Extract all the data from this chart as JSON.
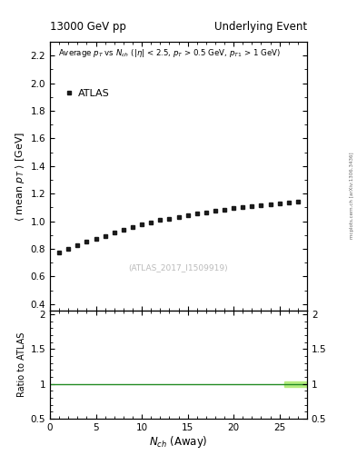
{
  "title_left": "13000 GeV pp",
  "title_right": "Underlying Event",
  "annotation_line1": "Average $p_{T}$ vs $N_{ch}$ (|$\\eta$| < 2.5, $p_{T}$ > 0.5 GeV, $p_{T1}$ > 1 GeV)",
  "watermark": "(ATLAS_2017_I1509919)",
  "right_label": "mcplots.cern.ch [arXiv:1306.3436]",
  "legend_label": "ATLAS",
  "xlabel": "$N_{ch}$ (Away)",
  "ylabel_main": "$\\langle$ mean $p_{T}$ $\\rangle$ [GeV]",
  "ylabel_ratio": "Ratio to ATLAS",
  "xlim": [
    0,
    28
  ],
  "ylim_main": [
    0.35,
    2.3
  ],
  "ylim_ratio": [
    0.5,
    2.05
  ],
  "yticks_main": [
    0.4,
    0.6,
    0.8,
    1.0,
    1.2,
    1.4,
    1.6,
    1.8,
    2.0,
    2.2
  ],
  "yticks_ratio": [
    0.5,
    1.0,
    1.5,
    2.0
  ],
  "data_x": [
    1,
    2,
    3,
    4,
    5,
    6,
    7,
    8,
    9,
    10,
    11,
    12,
    13,
    14,
    15,
    16,
    17,
    18,
    19,
    20,
    21,
    22,
    23,
    24,
    25,
    26,
    27
  ],
  "data_y": [
    0.775,
    0.8,
    0.825,
    0.855,
    0.875,
    0.895,
    0.918,
    0.94,
    0.96,
    0.978,
    0.993,
    1.008,
    1.02,
    1.032,
    1.042,
    1.055,
    1.065,
    1.075,
    1.085,
    1.095,
    1.1,
    1.108,
    1.115,
    1.122,
    1.128,
    1.135,
    1.14
  ],
  "marker_color": "#1a1a1a",
  "ratio_line_color": "#228B22",
  "ratio_band_color": "#adeb6e",
  "background_color": "#ffffff"
}
